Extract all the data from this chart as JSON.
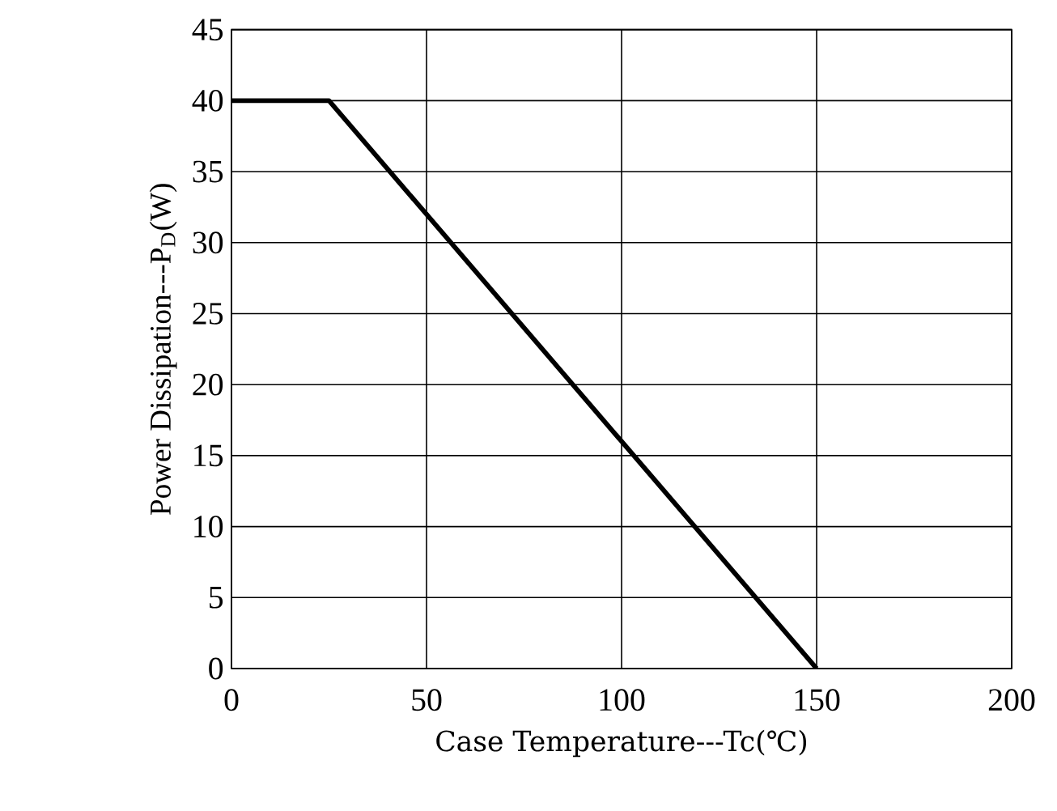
{
  "chart_data": {
    "type": "line",
    "xlabel": "Case Temperature---Tc(℃)",
    "ylabel": "Power Dissipation---P$_{D}$(W)",
    "x": [
      0,
      25,
      150
    ],
    "series": [
      {
        "color": "#000000",
        "values": [
          40,
          40,
          0
        ]
      }
    ],
    "xlim": [
      0,
      200
    ],
    "xticks": [
      0,
      50,
      100,
      150,
      200
    ],
    "ylim": [
      0,
      45
    ],
    "yticks": [
      0,
      5,
      10,
      15,
      20,
      25,
      30,
      35,
      40,
      45
    ],
    "grid": true,
    "marker": "none",
    "line_style": "solid"
  }
}
